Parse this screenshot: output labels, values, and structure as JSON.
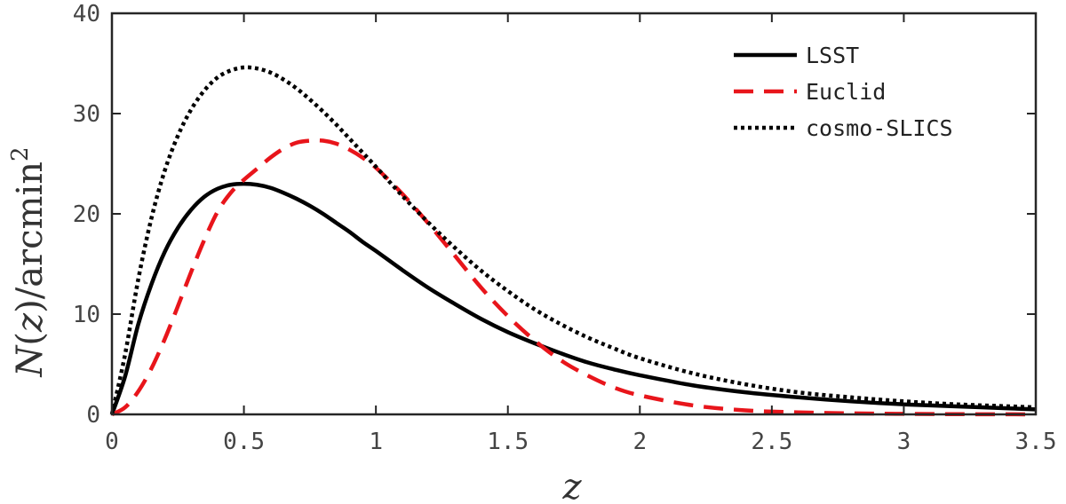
{
  "chart_data": {
    "type": "line",
    "xlabel": "z",
    "ylabel": "N(z)/arcmin²",
    "ylabel_parts": {
      "n": "N",
      "open": "(",
      "z": "z",
      "close": ")/arcmin",
      "sup": "2"
    },
    "xlim": [
      0,
      3.5
    ],
    "ylim": [
      0,
      40
    ],
    "xticks": [
      0,
      0.5,
      1,
      1.5,
      2,
      2.5,
      3,
      3.5
    ],
    "xtick_labels": [
      "0",
      "0.5",
      "1",
      "1.5",
      "2",
      "2.5",
      "3",
      "3.5"
    ],
    "yticks": [
      0,
      10,
      20,
      30,
      40
    ],
    "ytick_labels": [
      "0",
      "10",
      "20",
      "30",
      "40"
    ],
    "grid": false,
    "legend_position": "top-right",
    "series": [
      {
        "name": "LSST",
        "color": "#000000",
        "style": "solid",
        "x": [
          0,
          0.05,
          0.1,
          0.15,
          0.2,
          0.25,
          0.3,
          0.35,
          0.4,
          0.45,
          0.5,
          0.55,
          0.6,
          0.65,
          0.7,
          0.75,
          0.8,
          0.85,
          0.9,
          0.95,
          1.0,
          1.1,
          1.2,
          1.3,
          1.4,
          1.5,
          1.6,
          1.7,
          1.8,
          1.9,
          2.0,
          2.2,
          2.4,
          2.6,
          2.8,
          3.0,
          3.2,
          3.4,
          3.5
        ],
        "y": [
          0,
          3.8,
          9.0,
          13.0,
          16.2,
          18.6,
          20.4,
          21.7,
          22.5,
          22.9,
          23.0,
          22.9,
          22.6,
          22.1,
          21.5,
          20.8,
          20.0,
          19.1,
          18.2,
          17.2,
          16.3,
          14.4,
          12.6,
          11.0,
          9.5,
          8.2,
          7.1,
          6.1,
          5.2,
          4.5,
          3.9,
          2.9,
          2.2,
          1.7,
          1.3,
          1.0,
          0.8,
          0.6,
          0.5
        ]
      },
      {
        "name": "Euclid",
        "color": "#e8151b",
        "style": "dashed",
        "x": [
          0,
          0.05,
          0.1,
          0.15,
          0.2,
          0.25,
          0.3,
          0.35,
          0.4,
          0.45,
          0.5,
          0.55,
          0.6,
          0.65,
          0.7,
          0.75,
          0.8,
          0.85,
          0.9,
          0.95,
          1.0,
          1.1,
          1.2,
          1.3,
          1.4,
          1.5,
          1.6,
          1.7,
          1.8,
          1.9,
          2.0,
          2.2,
          2.4,
          2.6,
          2.8,
          3.0,
          3.2,
          3.4,
          3.5
        ],
        "y": [
          0,
          0.7,
          2.3,
          4.6,
          7.5,
          10.8,
          14.2,
          17.4,
          20.2,
          22.1,
          23.4,
          24.5,
          25.6,
          26.5,
          27.1,
          27.3,
          27.3,
          27.0,
          26.4,
          25.6,
          24.6,
          22.0,
          19.0,
          15.8,
          12.6,
          9.8,
          7.4,
          5.4,
          3.9,
          2.7,
          1.9,
          0.9,
          0.4,
          0.2,
          0.1,
          0.05,
          0.02,
          0.01,
          0
        ]
      },
      {
        "name": "cosmo-SLICS",
        "color": "#000000",
        "style": "dotted",
        "x": [
          0,
          0.05,
          0.1,
          0.15,
          0.2,
          0.25,
          0.3,
          0.35,
          0.4,
          0.45,
          0.5,
          0.55,
          0.6,
          0.65,
          0.7,
          0.75,
          0.8,
          0.85,
          0.9,
          0.95,
          1.0,
          1.1,
          1.2,
          1.3,
          1.4,
          1.5,
          1.6,
          1.7,
          1.8,
          1.9,
          2.0,
          2.2,
          2.4,
          2.6,
          2.8,
          3.0,
          3.2,
          3.4,
          3.5
        ],
        "y": [
          0,
          6.0,
          13.5,
          19.6,
          24.3,
          27.8,
          30.4,
          32.3,
          33.6,
          34.3,
          34.6,
          34.5,
          34.1,
          33.4,
          32.5,
          31.4,
          30.2,
          28.9,
          27.5,
          26.1,
          24.7,
          21.8,
          19.1,
          16.6,
          14.3,
          12.3,
          10.5,
          9.0,
          7.7,
          6.6,
          5.6,
          4.1,
          3.0,
          2.2,
          1.7,
          1.3,
          1.0,
          0.8,
          0.7
        ]
      }
    ]
  }
}
